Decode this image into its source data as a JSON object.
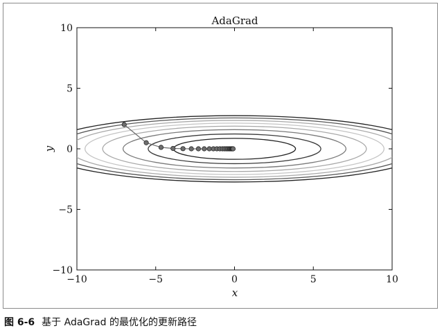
{
  "chart_data": {
    "type": "line",
    "title": "AdaGrad",
    "xlabel": "x",
    "ylabel": "y",
    "xlim": [
      -10,
      10
    ],
    "ylim": [
      -10,
      10
    ],
    "xticks": [
      -10,
      -5,
      0,
      5,
      10
    ],
    "yticks": [
      -10,
      -5,
      0,
      5,
      10
    ],
    "xtick_labels": [
      "−10",
      "−5",
      "0",
      "5",
      "10"
    ],
    "ytick_labels": [
      "−10",
      "−5",
      "0",
      "5",
      "10"
    ],
    "contour": {
      "function": "f(x,y) = x^2/20 + y^2",
      "levels": [
        0.75,
        1.5,
        2.5,
        3.5,
        4.5,
        5.5,
        6.5,
        7.5
      ],
      "colors": [
        "#222222",
        "#3a3a3a",
        "#7a7a7a",
        "#a8a8a8",
        "#c4c4c4",
        "#a8a8a8",
        "#555555",
        "#222222"
      ]
    },
    "series": [
      {
        "name": "AdaGrad path",
        "x": [
          -7.0,
          -5.6,
          -4.66,
          -3.9,
          -3.27,
          -2.74,
          -2.29,
          -1.92,
          -1.6,
          -1.34,
          -1.12,
          -0.93,
          -0.77,
          -0.64,
          -0.53,
          -0.44,
          -0.36,
          -0.3,
          -0.25,
          -0.2,
          -0.17,
          -0.14,
          -0.11,
          -0.09
        ],
        "y": [
          2.0,
          0.5,
          0.12,
          0.03,
          0.01,
          0.0,
          0.0,
          0.0,
          0.0,
          0.0,
          0.0,
          0.0,
          0.0,
          0.0,
          0.0,
          0.0,
          0.0,
          0.0,
          0.0,
          0.0,
          0.0,
          0.0,
          0.0,
          0.0
        ]
      }
    ],
    "colors": {
      "path_line": "#6b6b6b",
      "point_fill": "#6e6e6e",
      "point_stroke": "#2a2a2a",
      "axes": "#111111",
      "frame": "#8a8a8a"
    }
  },
  "caption": {
    "figure_number": "图 6-6",
    "text": "基于 AdaGrad 的最优化的更新路径"
  }
}
